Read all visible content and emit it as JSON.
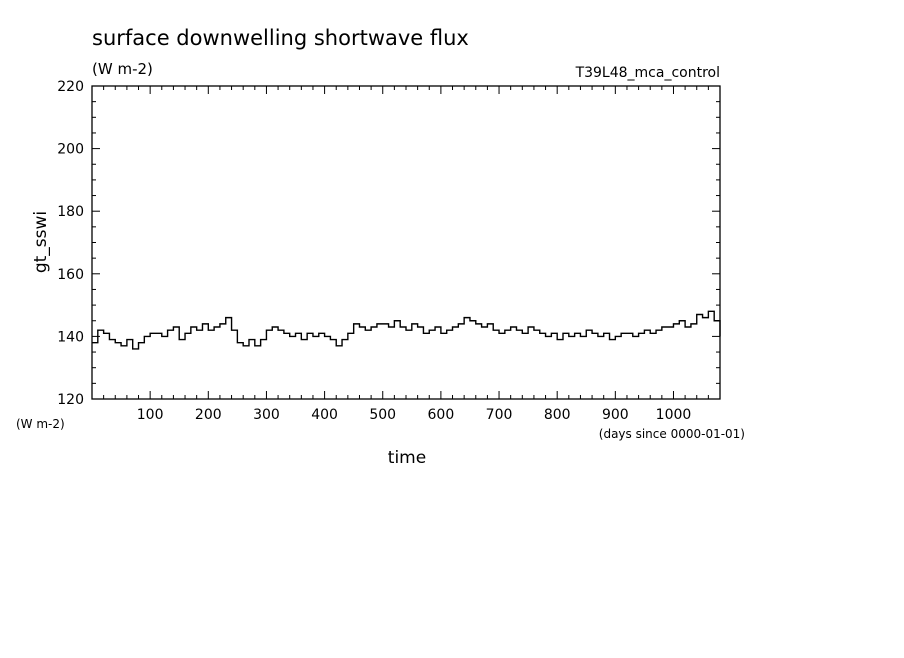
{
  "chart_data": {
    "type": "line",
    "title": "surface downwelling shortwave flux",
    "subtitle": "(W m-2)",
    "case_label": "T39L48_mca_control",
    "xlabel": "time",
    "ylabel": "gt_sswi",
    "x_units": "(days since 0000-01-01)",
    "y_units": "(W m-2)",
    "xlim": [
      0,
      1080
    ],
    "ylim": [
      120,
      220
    ],
    "x_ticks": [
      100,
      200,
      300,
      400,
      500,
      600,
      700,
      800,
      900,
      1000
    ],
    "y_ticks": [
      120,
      140,
      160,
      180,
      200,
      220
    ],
    "grid": false,
    "line_color": "#000000",
    "series": [
      {
        "x": [
          0,
          10,
          20,
          30,
          40,
          50,
          60,
          70,
          80,
          90,
          100,
          110,
          120,
          130,
          140,
          150,
          160,
          170,
          180,
          190,
          200,
          210,
          220,
          230,
          240,
          250,
          260,
          270,
          280,
          290,
          300,
          310,
          320,
          330,
          340,
          350,
          360,
          370,
          380,
          390,
          400,
          410,
          420,
          430,
          440,
          450,
          460,
          470,
          480,
          490,
          500,
          510,
          520,
          530,
          540,
          550,
          560,
          570,
          580,
          590,
          600,
          610,
          620,
          630,
          640,
          650,
          660,
          670,
          680,
          690,
          700,
          710,
          720,
          730,
          740,
          750,
          760,
          770,
          780,
          790,
          800,
          810,
          820,
          830,
          840,
          850,
          860,
          870,
          880,
          890,
          900,
          910,
          920,
          930,
          940,
          950,
          960,
          970,
          980,
          990,
          1000,
          1010,
          1020,
          1030,
          1040,
          1050,
          1060,
          1070,
          1080
        ],
        "values": [
          138,
          142,
          141,
          139,
          138,
          137,
          139,
          136,
          138,
          140,
          141,
          141,
          140,
          142,
          143,
          139,
          141,
          143,
          142,
          144,
          142,
          143,
          144,
          146,
          142,
          138,
          137,
          139,
          137,
          139,
          142,
          143,
          142,
          141,
          140,
          141,
          139,
          141,
          140,
          141,
          140,
          139,
          137,
          139,
          141,
          144,
          143,
          142,
          143,
          144,
          144,
          143,
          145,
          143,
          142,
          144,
          143,
          141,
          142,
          143,
          141,
          142,
          143,
          144,
          146,
          145,
          144,
          143,
          144,
          142,
          141,
          142,
          143,
          142,
          141,
          143,
          142,
          141,
          140,
          141,
          139,
          141,
          140,
          141,
          140,
          142,
          141,
          140,
          141,
          139,
          140,
          141,
          141,
          140,
          141,
          142,
          141,
          142,
          143,
          143,
          144,
          145,
          143,
          144,
          147,
          146,
          148,
          145,
          140
        ]
      }
    ]
  }
}
